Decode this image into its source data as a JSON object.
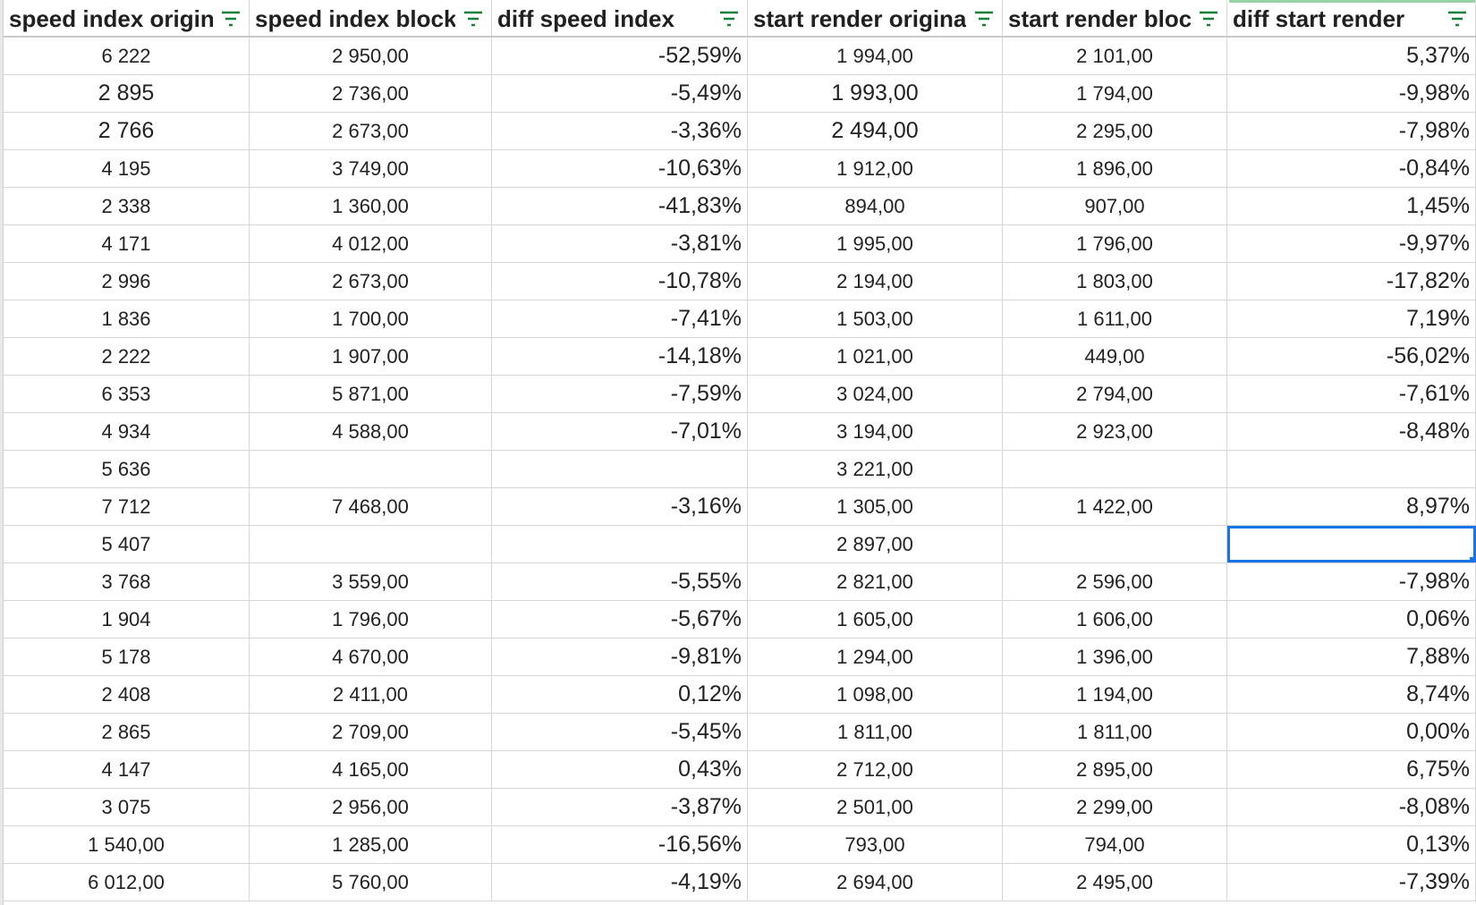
{
  "headers": [
    {
      "label": "speed index original"
    },
    {
      "label": "speed index blocked"
    },
    {
      "label": "diff speed index"
    },
    {
      "label": "start render original"
    },
    {
      "label": "start render blocked"
    },
    {
      "label": "diff start render"
    }
  ],
  "rows": [
    [
      "6 222",
      "2 950,00",
      "-52,59%",
      "1 994,00",
      "2 101,00",
      "5,37%"
    ],
    [
      "2 895",
      "2 736,00",
      "-5,49%",
      "1 993,00",
      "1 794,00",
      "-9,98%"
    ],
    [
      "2 766",
      "2 673,00",
      "-3,36%",
      "2 494,00",
      "2 295,00",
      "-7,98%"
    ],
    [
      "4 195",
      "3 749,00",
      "-10,63%",
      "1 912,00",
      "1 896,00",
      "-0,84%"
    ],
    [
      "2 338",
      "1 360,00",
      "-41,83%",
      "894,00",
      "907,00",
      "1,45%"
    ],
    [
      "4 171",
      "4 012,00",
      "-3,81%",
      "1 995,00",
      "1 796,00",
      "-9,97%"
    ],
    [
      "2 996",
      "2 673,00",
      "-10,78%",
      "2 194,00",
      "1 803,00",
      "-17,82%"
    ],
    [
      "1 836",
      "1 700,00",
      "-7,41%",
      "1 503,00",
      "1 611,00",
      "7,19%"
    ],
    [
      "2 222",
      "1 907,00",
      "-14,18%",
      "1 021,00",
      "449,00",
      "-56,02%"
    ],
    [
      "6 353",
      "5 871,00",
      "-7,59%",
      "3 024,00",
      "2 794,00",
      "-7,61%"
    ],
    [
      "4 934",
      "4 588,00",
      "-7,01%",
      "3 194,00",
      "2 923,00",
      "-8,48%"
    ],
    [
      "5 636",
      "",
      "",
      "3 221,00",
      "",
      ""
    ],
    [
      "7 712",
      "7 468,00",
      "-3,16%",
      "1 305,00",
      "1 422,00",
      "8,97%"
    ],
    [
      "5 407",
      "",
      "",
      "2 897,00",
      "",
      ""
    ],
    [
      "3 768",
      "3 559,00",
      "-5,55%",
      "2 821,00",
      "2 596,00",
      "-7,98%"
    ],
    [
      "1 904",
      "1 796,00",
      "-5,67%",
      "1 605,00",
      "1 606,00",
      "0,06%"
    ],
    [
      "5 178",
      "4 670,00",
      "-9,81%",
      "1 294,00",
      "1 396,00",
      "7,88%"
    ],
    [
      "2 408",
      "2 411,00",
      "0,12%",
      "1 098,00",
      "1 194,00",
      "8,74%"
    ],
    [
      "2 865",
      "2 709,00",
      "-5,45%",
      "1 811,00",
      "1 811,00",
      "0,00%"
    ],
    [
      "4 147",
      "4 165,00",
      "0,43%",
      "2 712,00",
      "2 895,00",
      "6,75%"
    ],
    [
      "3 075",
      "2 956,00",
      "-3,87%",
      "2 501,00",
      "2 299,00",
      "-8,08%"
    ],
    [
      "1 540,00",
      "1 285,00",
      "-16,56%",
      "793,00",
      "794,00",
      "0,13%"
    ],
    [
      "6 012,00",
      "5 760,00",
      "-4,19%",
      "2 694,00",
      "2 495,00",
      "-7,39%"
    ]
  ],
  "selected_cell": {
    "row": 13,
    "col": 5
  },
  "icons": {
    "filter": "filter-icon"
  },
  "colors": {
    "filter_icon": "#188038",
    "selection": "#1a73e8",
    "grid": "#d6d6d6"
  }
}
